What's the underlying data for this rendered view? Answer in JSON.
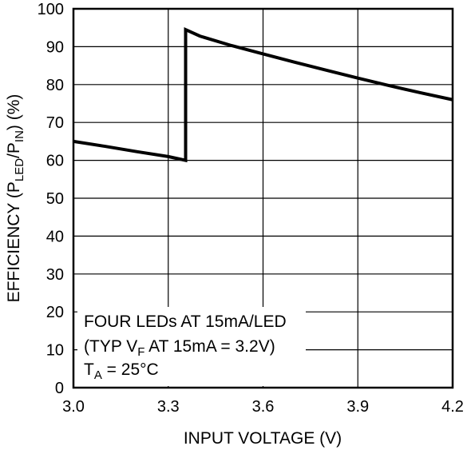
{
  "chart_data": {
    "type": "line",
    "title": "",
    "xlabel": "INPUT VOLTAGE (V)",
    "ylabel": {
      "p1": "EFFICIENCY (P",
      "sub1": "LED",
      "p2": "/P",
      "sub2": "IN",
      "p3": ") (%)"
    },
    "xlim": [
      3.0,
      4.2
    ],
    "ylim": [
      0,
      100
    ],
    "x_ticks": [
      "3.0",
      "3.3",
      "3.6",
      "3.9",
      "4.2"
    ],
    "y_ticks": [
      "0",
      "10",
      "20",
      "30",
      "40",
      "50",
      "60",
      "70",
      "80",
      "90",
      "100"
    ],
    "grid": true,
    "series": [
      {
        "x": [
          3.0,
          3.1,
          3.2,
          3.3,
          3.355,
          3.355,
          3.4,
          3.5,
          3.6,
          3.7,
          3.8,
          3.9,
          4.0,
          4.1,
          4.2
        ],
        "y": [
          65.0,
          63.7,
          62.3,
          61.0,
          60.0,
          94.5,
          92.8,
          90.3,
          88.1,
          85.9,
          83.8,
          81.7,
          79.7,
          77.8,
          76.0
        ]
      }
    ],
    "annotation": {
      "line1": "FOUR LEDs AT 15mA/LED",
      "line2": {
        "p1": "(TYP V",
        "sub": "F",
        "p2": " AT 15mA = 3.2V)"
      },
      "line3": {
        "p1": "T",
        "sub": "A",
        "p2": " = 25°C"
      }
    }
  }
}
